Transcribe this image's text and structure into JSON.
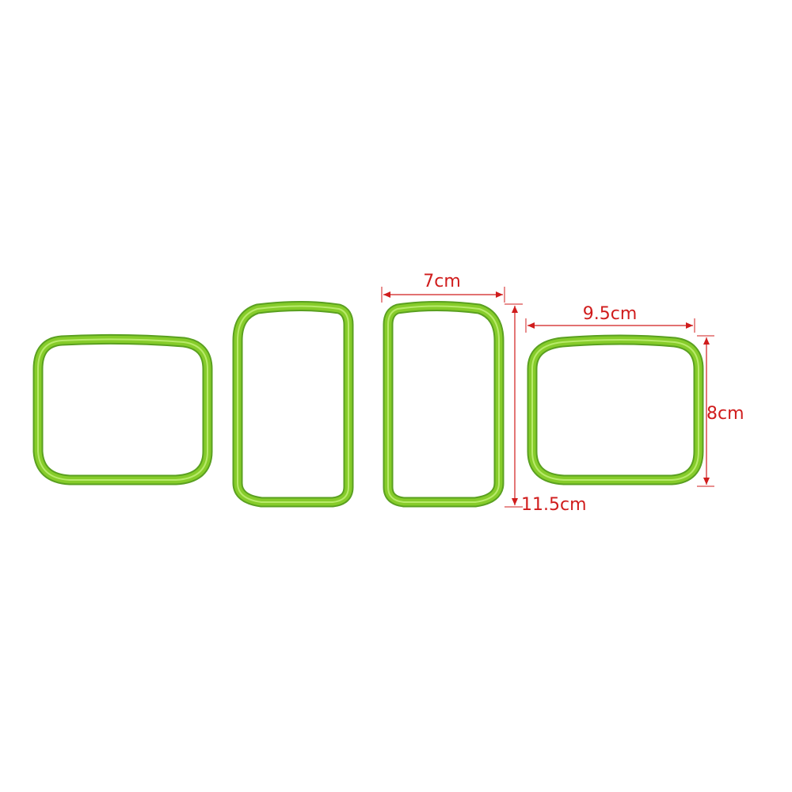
{
  "dimensions": {
    "width_label": "7cm",
    "height_label": "11.5cm",
    "small_width_label": "9.5cm",
    "small_height_label": "8cm"
  },
  "colors": {
    "ring": "#86cc2a",
    "ring_dark": "#5aa020",
    "ring_light": "#b8ea6a",
    "dimension": "#d01c1c"
  }
}
